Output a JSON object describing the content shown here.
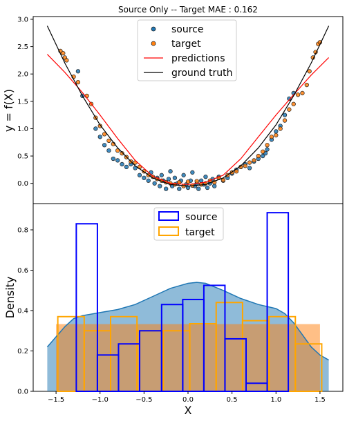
{
  "chart_data": [
    {
      "type": "scatter",
      "title": "Source Only -- Target MAE : 0.162",
      "xlabel": "",
      "ylabel": "y = f(X)",
      "xlim": [
        -1.76,
        1.76
      ],
      "ylim": [
        -0.37,
        3.05
      ],
      "yticks": [
        0.0,
        0.5,
        1.0,
        1.5,
        2.0,
        2.5,
        3.0
      ],
      "ytick_labels": [
        "0.0",
        "0.5",
        "1.0",
        "1.5",
        "2.0",
        "2.5",
        "3.0"
      ],
      "legend_position": "top-center",
      "legend": [
        "source",
        "target",
        "predictions",
        "ground truth"
      ],
      "series": [
        {
          "name": "source",
          "kind": "points",
          "color": "#1f77b4",
          "points": [
            [
              -1.25,
              2.05
            ],
            [
              -1.2,
              1.6
            ],
            [
              -1.05,
              1.0
            ],
            [
              -1.0,
              0.85
            ],
            [
              -0.95,
              0.7
            ],
            [
              -0.9,
              0.6
            ],
            [
              -0.85,
              0.45
            ],
            [
              -0.8,
              0.42
            ],
            [
              -0.75,
              0.35
            ],
            [
              -0.7,
              0.3
            ],
            [
              -0.65,
              0.35
            ],
            [
              -0.6,
              0.28
            ],
            [
              -0.55,
              0.15
            ],
            [
              -0.5,
              0.1
            ],
            [
              -0.45,
              0.05
            ],
            [
              -0.42,
              0.2
            ],
            [
              -0.38,
              0.0
            ],
            [
              -0.35,
              0.1
            ],
            [
              -0.32,
              -0.05
            ],
            [
              -0.3,
              0.15
            ],
            [
              -0.28,
              0.05
            ],
            [
              -0.25,
              -0.1
            ],
            [
              -0.22,
              0.08
            ],
            [
              -0.2,
              0.22
            ],
            [
              -0.18,
              -0.05
            ],
            [
              -0.15,
              0.1
            ],
            [
              -0.12,
              0.0
            ],
            [
              -0.1,
              -0.1
            ],
            [
              -0.08,
              0.05
            ],
            [
              -0.05,
              0.15
            ],
            [
              -0.02,
              -0.02
            ],
            [
              0.0,
              -0.08
            ],
            [
              0.03,
              0.05
            ],
            [
              0.05,
              0.2
            ],
            [
              0.08,
              -0.05
            ],
            [
              0.1,
              0.0
            ],
            [
              0.12,
              -0.1
            ],
            [
              0.15,
              0.05
            ],
            [
              0.18,
              -0.02
            ],
            [
              0.2,
              0.12
            ],
            [
              0.22,
              -0.08
            ],
            [
              0.25,
              0.0
            ],
            [
              0.28,
              0.08
            ],
            [
              0.3,
              -0.05
            ],
            [
              0.35,
              0.12
            ],
            [
              0.4,
              0.05
            ],
            [
              0.45,
              0.1
            ],
            [
              0.5,
              0.18
            ],
            [
              0.55,
              0.25
            ],
            [
              0.6,
              0.3
            ],
            [
              0.65,
              0.35
            ],
            [
              0.7,
              0.28
            ],
            [
              0.75,
              0.4
            ],
            [
              0.8,
              0.45
            ],
            [
              0.85,
              0.5
            ],
            [
              0.88,
              0.55
            ],
            [
              0.9,
              0.62
            ],
            [
              0.95,
              0.8
            ],
            [
              1.0,
              0.95
            ],
            [
              1.05,
              1.05
            ],
            [
              1.1,
              1.25
            ],
            [
              1.15,
              1.55
            ],
            [
              1.2,
              1.65
            ]
          ]
        },
        {
          "name": "target",
          "kind": "points",
          "color": "#ff7f0e",
          "points": [
            [
              -1.45,
              2.42
            ],
            [
              -1.42,
              2.38
            ],
            [
              -1.4,
              2.3
            ],
            [
              -1.38,
              2.25
            ],
            [
              -1.3,
              1.95
            ],
            [
              -1.25,
              1.85
            ],
            [
              -1.15,
              1.6
            ],
            [
              -1.1,
              1.45
            ],
            [
              -1.05,
              1.2
            ],
            [
              -1.0,
              1.05
            ],
            [
              -0.95,
              0.9
            ],
            [
              -0.9,
              0.78
            ],
            [
              -0.85,
              0.72
            ],
            [
              -0.8,
              0.6
            ],
            [
              -0.75,
              0.55
            ],
            [
              -0.7,
              0.48
            ],
            [
              -0.65,
              0.4
            ],
            [
              -0.6,
              0.38
            ],
            [
              -0.55,
              0.3
            ],
            [
              -0.5,
              0.22
            ],
            [
              -0.45,
              0.15
            ],
            [
              -0.4,
              0.12
            ],
            [
              -0.35,
              0.08
            ],
            [
              -0.3,
              0.05
            ],
            [
              -0.25,
              0.02
            ],
            [
              -0.2,
              0.0
            ],
            [
              -0.15,
              -0.02
            ],
            [
              -0.1,
              0.02
            ],
            [
              -0.05,
              -0.05
            ],
            [
              0.0,
              0.03
            ],
            [
              0.05,
              -0.04
            ],
            [
              0.1,
              0.04
            ],
            [
              0.15,
              -0.02
            ],
            [
              0.2,
              0.0
            ],
            [
              0.25,
              0.05
            ],
            [
              0.3,
              0.02
            ],
            [
              0.35,
              0.1
            ],
            [
              0.4,
              0.06
            ],
            [
              0.45,
              0.15
            ],
            [
              0.5,
              0.2
            ],
            [
              0.55,
              0.22
            ],
            [
              0.6,
              0.3
            ],
            [
              0.65,
              0.32
            ],
            [
              0.7,
              0.38
            ],
            [
              0.75,
              0.42
            ],
            [
              0.8,
              0.5
            ],
            [
              0.85,
              0.58
            ],
            [
              0.9,
              0.7
            ],
            [
              0.95,
              0.85
            ],
            [
              1.0,
              0.88
            ],
            [
              1.05,
              1.0
            ],
            [
              1.1,
              1.15
            ],
            [
              1.15,
              1.35
            ],
            [
              1.2,
              1.45
            ],
            [
              1.25,
              1.62
            ],
            [
              1.3,
              1.65
            ],
            [
              1.35,
              1.8
            ],
            [
              1.38,
              2.05
            ],
            [
              1.42,
              2.3
            ],
            [
              1.48,
              2.55
            ],
            [
              1.5,
              2.58
            ],
            [
              1.45,
              2.4
            ]
          ]
        },
        {
          "name": "predictions",
          "kind": "line",
          "color": "#ff0000",
          "points": [
            [
              -1.6,
              2.36
            ],
            [
              -1.4,
              2.03
            ],
            [
              -1.2,
              1.66
            ],
            [
              -1.0,
              1.25
            ],
            [
              -0.8,
              0.82
            ],
            [
              -0.6,
              0.42
            ],
            [
              -0.4,
              0.13
            ],
            [
              -0.2,
              0.0
            ],
            [
              0.0,
              -0.02
            ],
            [
              0.2,
              0.02
            ],
            [
              0.4,
              0.15
            ],
            [
              0.6,
              0.45
            ],
            [
              0.8,
              0.85
            ],
            [
              1.0,
              1.25
            ],
            [
              1.2,
              1.62
            ],
            [
              1.4,
              1.98
            ],
            [
              1.6,
              2.3
            ]
          ]
        },
        {
          "name": "ground truth",
          "kind": "line",
          "color": "#000000",
          "points": [
            [
              -1.6,
              2.88
            ],
            [
              -1.4,
              2.2
            ],
            [
              -1.2,
              1.6
            ],
            [
              -1.0,
              1.07
            ],
            [
              -0.8,
              0.65
            ],
            [
              -0.6,
              0.32
            ],
            [
              -0.4,
              0.1
            ],
            [
              -0.2,
              -0.02
            ],
            [
              0.0,
              -0.05
            ],
            [
              0.2,
              -0.02
            ],
            [
              0.4,
              0.1
            ],
            [
              0.6,
              0.32
            ],
            [
              0.8,
              0.65
            ],
            [
              1.0,
              1.07
            ],
            [
              1.2,
              1.6
            ],
            [
              1.4,
              2.2
            ],
            [
              1.6,
              2.88
            ]
          ]
        }
      ]
    },
    {
      "type": "bar",
      "title": "",
      "xlabel": "X",
      "ylabel": "Density",
      "xlim": [
        -1.76,
        1.76
      ],
      "ylim": [
        0,
        0.93
      ],
      "xticks": [
        -1.5,
        -1.0,
        -0.5,
        0.0,
        0.5,
        1.0,
        1.5
      ],
      "xtick_labels": [
        "−1.5",
        "−1.0",
        "−0.5",
        "0.0",
        "0.5",
        "1.0",
        "1.5"
      ],
      "yticks": [
        0.0,
        0.2,
        0.4,
        0.6,
        0.8
      ],
      "ytick_labels": [
        "0.0",
        "0.2",
        "0.4",
        "0.6",
        "0.8"
      ],
      "legend_position": "top-center",
      "legend": [
        "source",
        "target"
      ],
      "series": [
        {
          "name": "source",
          "kind": "hist",
          "color": "#0000ff",
          "bins": [
            [
              -1.27,
              -1.03,
              0.83
            ],
            [
              -1.03,
              -0.79,
              0.18
            ],
            [
              -0.79,
              -0.55,
              0.235
            ],
            [
              -0.55,
              -0.3,
              0.3
            ],
            [
              -0.3,
              -0.06,
              0.43
            ],
            [
              -0.06,
              0.18,
              0.455
            ],
            [
              0.18,
              0.42,
              0.525
            ],
            [
              0.42,
              0.66,
              0.26
            ],
            [
              0.66,
              0.9,
              0.04
            ],
            [
              0.9,
              1.14,
              0.885
            ]
          ]
        },
        {
          "name": "target",
          "kind": "hist",
          "color": "#ffa500",
          "bins": [
            [
              -1.48,
              -1.18,
              0.37
            ],
            [
              -1.18,
              -0.88,
              0.3
            ],
            [
              -0.88,
              -0.58,
              0.37
            ],
            [
              -0.58,
              -0.28,
              0.3
            ],
            [
              -0.28,
              0.02,
              0.3
            ],
            [
              0.02,
              0.32,
              0.335
            ],
            [
              0.32,
              0.62,
              0.44
            ],
            [
              0.62,
              0.92,
              0.35
            ],
            [
              0.92,
              1.22,
              0.37
            ],
            [
              1.22,
              1.52,
              0.235
            ]
          ]
        },
        {
          "kind": "kde",
          "color": "#1f77b4",
          "points": [
            [
              -1.6,
              0.22
            ],
            [
              -1.5,
              0.27
            ],
            [
              -1.4,
              0.32
            ],
            [
              -1.3,
              0.36
            ],
            [
              -1.2,
              0.375
            ],
            [
              -1.0,
              0.39
            ],
            [
              -0.8,
              0.405
            ],
            [
              -0.6,
              0.43
            ],
            [
              -0.4,
              0.47
            ],
            [
              -0.2,
              0.51
            ],
            [
              0.0,
              0.535
            ],
            [
              0.1,
              0.54
            ],
            [
              0.2,
              0.535
            ],
            [
              0.4,
              0.5
            ],
            [
              0.6,
              0.46
            ],
            [
              0.8,
              0.43
            ],
            [
              1.0,
              0.41
            ],
            [
              1.1,
              0.385
            ],
            [
              1.2,
              0.34
            ],
            [
              1.3,
              0.28
            ],
            [
              1.4,
              0.22
            ],
            [
              1.5,
              0.18
            ],
            [
              1.6,
              0.155
            ]
          ]
        },
        {
          "kind": "span",
          "color": "#ff7f0e",
          "x": [
            -1.5,
            1.5
          ],
          "y": 0.333
        }
      ]
    }
  ]
}
